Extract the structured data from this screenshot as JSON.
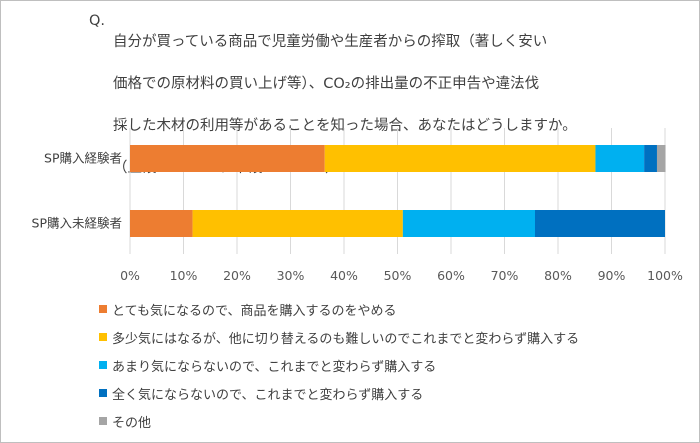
{
  "chart_data": {
    "type": "bar",
    "orientation": "horizontal",
    "stacked": "percent",
    "title_prefix": "Q.",
    "title_lines": [
      "自分が買っている商品で児童労働や生産者からの搾取（著しく安い",
      "価格での原材料の買い上げ等）、CO₂の排出量の不正申告や違法伐",
      "採した木材の利用等があることを知った場合、あなたはどうしますか。",
      "（上段: N＝253、下段: N＝247）"
    ],
    "categories": [
      "SP購入経験者",
      "SP購入未経験者"
    ],
    "series": [
      {
        "name": "とても気になるので、商品を購入するのをやめる",
        "color": "#ED7D31",
        "values": [
          36.4,
          11.7
        ]
      },
      {
        "name": "多少気にはなるが、他に切り替えるのも難しいのでこれまでと変わらず購入する",
        "color": "#FFC000",
        "values": [
          50.6,
          39.3
        ]
      },
      {
        "name": "あまり気にならないので、これまでと変わらず購入する",
        "color": "#00B0F0",
        "values": [
          9.1,
          24.7
        ]
      },
      {
        "name": "全く気にならないので、これまでと変わらず購入する",
        "color": "#0070C0",
        "values": [
          2.4,
          24.3
        ]
      },
      {
        "name": "その他",
        "color": "#A5A5A5",
        "values": [
          1.6,
          0
        ]
      }
    ],
    "xlim": [
      0,
      100
    ],
    "xticks": [
      "0%",
      "10%",
      "20%",
      "30%",
      "40%",
      "50%",
      "60%",
      "70%",
      "80%",
      "90%",
      "100%"
    ],
    "grid": true,
    "legend_position": "bottom"
  }
}
